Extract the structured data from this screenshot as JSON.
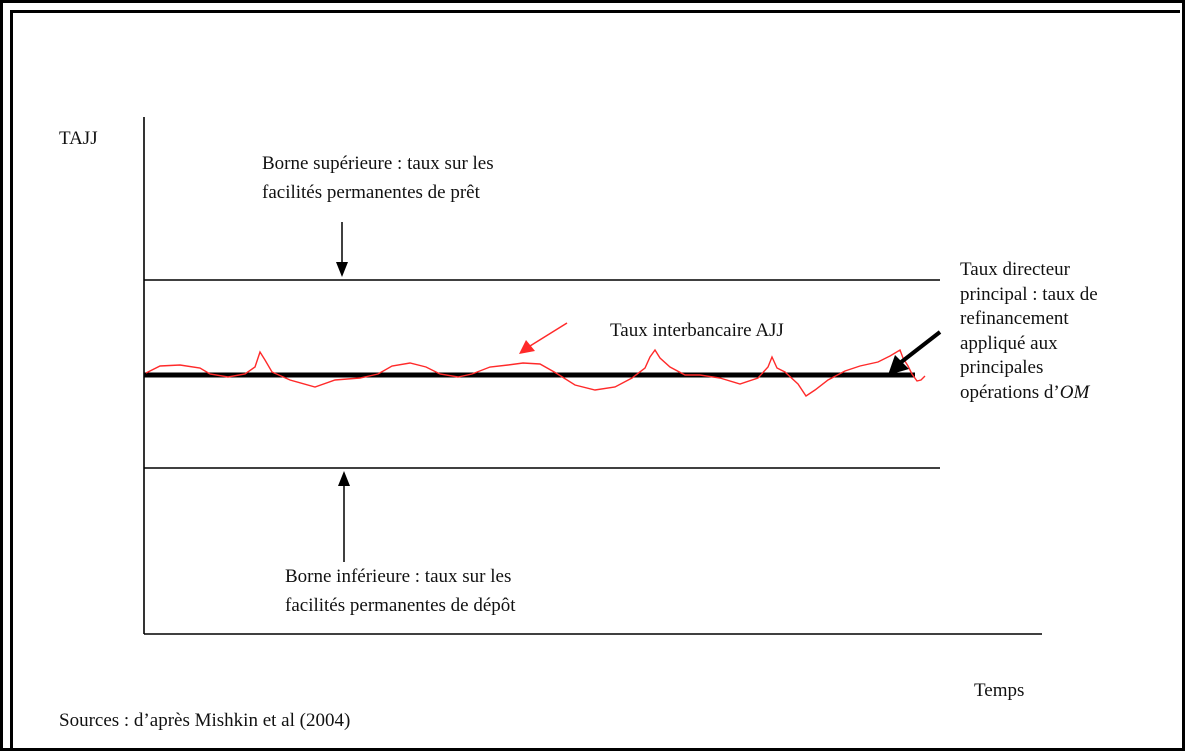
{
  "axes": {
    "y_label": "TAJJ",
    "x_label": "Temps"
  },
  "labels": {
    "upper_bound": [
      "Borne supérieure : taux sur les",
      "facilités permanentes de prêt"
    ],
    "lower_bound": [
      "Borne inférieure : taux sur les",
      "facilités permanentes de dépôt"
    ],
    "interbank": "Taux interbancaire AJJ",
    "policy_rate": [
      "Taux directeur",
      "principal : taux de",
      "refinancement",
      "appliqué aux",
      "principales"
    ],
    "policy_rate_last_prefix": "opérations d’",
    "policy_rate_last_italic": "OM"
  },
  "source": "Sources : d’après Mishkin et al (2004)",
  "colors": {
    "line": "#000000",
    "interbank_curve": "#ff2a2a"
  }
}
